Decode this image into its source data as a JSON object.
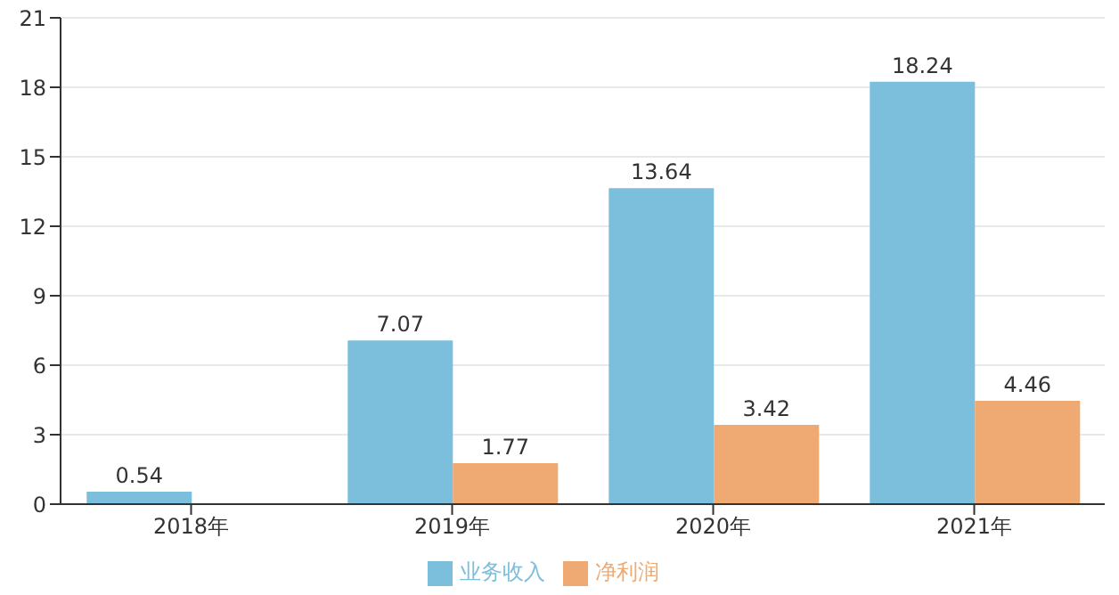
{
  "chart_data": {
    "type": "bar",
    "categories": [
      "2018年",
      "2019年",
      "2020年",
      "2021年"
    ],
    "series": [
      {
        "name": "业务收入",
        "color": "#7bbfdc",
        "values": [
          0.54,
          7.07,
          13.64,
          18.24
        ]
      },
      {
        "name": "净利润",
        "color": "#eeaa72",
        "values": [
          null,
          1.77,
          3.42,
          4.46
        ]
      }
    ],
    "ylim": [
      0,
      21
    ],
    "yticks": [
      0,
      3,
      6,
      9,
      12,
      15,
      18,
      21
    ],
    "grid": "y",
    "legend": "bottom",
    "data_labels": true
  }
}
